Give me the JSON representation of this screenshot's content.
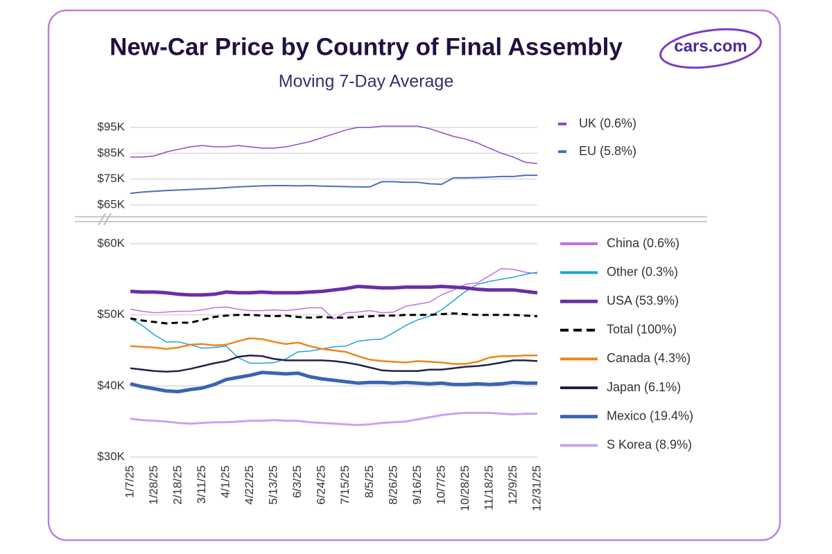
{
  "logo": "cars.com",
  "chart_data": [
    {
      "type": "line",
      "title": "New-Car Price by Country of Final Assembly",
      "subtitle": "Moving 7-Day Average",
      "categories": [
        "1/7/25",
        null,
        "1/28/25",
        null,
        "2/18/25",
        null,
        "3/11/25",
        null,
        "4/1/25",
        null,
        "4/22/25",
        null,
        "5/13/25",
        null,
        "6/3/25",
        null,
        "6/24/25",
        null,
        "7/15/25",
        null,
        "8/5/25",
        null,
        "8/26/25",
        null,
        "9/16/25",
        null,
        "10/7/25",
        null,
        "10/28/25",
        null,
        "11/18/25",
        null,
        "12/9/25",
        null,
        "12/31/25"
      ],
      "ylim": [
        60000,
        100000
      ],
      "yticks": [
        {
          "value": 65000,
          "label": "$65K"
        },
        {
          "value": 75000,
          "label": "$75K"
        },
        {
          "value": 85000,
          "label": "$85K"
        },
        {
          "value": 95000,
          "label": "$95K"
        }
      ],
      "grid": true,
      "series": [
        {
          "name": "UK (0.6%)",
          "color": "#8a4cc4",
          "width": 1.5,
          "values": [
            83500,
            83500,
            84000,
            85500,
            86500,
            87500,
            88000,
            87500,
            87500,
            88000,
            87500,
            87000,
            87000,
            87500,
            88500,
            89500,
            91000,
            92500,
            94000,
            95000,
            95000,
            95500,
            95500,
            95500,
            95500,
            94500,
            93000,
            91500,
            90500,
            89000,
            87000,
            85000,
            83500,
            81500,
            81000
          ]
        },
        {
          "name": "EU (5.8%)",
          "color": "#4a6fb8",
          "width": 2,
          "values": [
            69500,
            70000,
            70300,
            70600,
            70800,
            71000,
            71200,
            71400,
            71700,
            72000,
            72200,
            72400,
            72500,
            72500,
            72400,
            72500,
            72300,
            72200,
            72100,
            72000,
            72000,
            74000,
            74000,
            73800,
            73800,
            73200,
            73000,
            75500,
            75500,
            75600,
            75800,
            76000,
            76000,
            76500,
            76500
          ]
        }
      ]
    },
    {
      "type": "line",
      "ylim": [
        30000,
        60000
      ],
      "yticks": [
        {
          "value": 30000,
          "label": "$30K"
        },
        {
          "value": 40000,
          "label": "$40K"
        },
        {
          "value": 50000,
          "label": "$50K"
        },
        {
          "value": 60000,
          "label": "$60K"
        }
      ],
      "grid": true,
      "series": [
        {
          "name": "China (0.6%)",
          "color": "#c56ee0",
          "width": 1.5,
          "values": [
            50800,
            50500,
            50300,
            50400,
            50500,
            50500,
            50700,
            51000,
            51100,
            50800,
            50600,
            50600,
            50700,
            50600,
            50800,
            51000,
            51000,
            49400,
            50300,
            50400,
            50600,
            50300,
            50400,
            51200,
            51500,
            51800,
            52800,
            53500,
            54300,
            54500,
            55500,
            56500,
            56400,
            56000,
            55800
          ]
        },
        {
          "name": "Other (0.3%)",
          "color": "#1ea3d6",
          "width": 1.5,
          "values": [
            49500,
            48500,
            47200,
            46200,
            46200,
            45800,
            45300,
            45400,
            45600,
            44000,
            43200,
            43200,
            43300,
            43800,
            44800,
            44900,
            45200,
            45500,
            45600,
            46300,
            46500,
            46600,
            47500,
            48500,
            49300,
            49800,
            50700,
            52000,
            53300,
            54300,
            54700,
            55000,
            55300,
            55700,
            56000
          ]
        },
        {
          "name": "USA (53.9%)",
          "color": "#6a2ea8",
          "width": 5,
          "values": [
            53300,
            53200,
            53200,
            53100,
            52900,
            52800,
            52800,
            52900,
            53200,
            53100,
            53100,
            53200,
            53100,
            53100,
            53100,
            53200,
            53300,
            53500,
            53700,
            54000,
            53900,
            53800,
            53800,
            53900,
            53900,
            53900,
            54000,
            53900,
            53800,
            53600,
            53500,
            53500,
            53500,
            53300,
            53100
          ]
        },
        {
          "name": "Total (100%)",
          "color": "#000000",
          "width": 3,
          "dashed": true,
          "values": [
            49500,
            49200,
            49000,
            48800,
            48900,
            48900,
            49300,
            49700,
            49900,
            50000,
            50000,
            49900,
            49800,
            49900,
            49700,
            49600,
            49700,
            49600,
            49600,
            49700,
            49800,
            49900,
            49900,
            50000,
            50000,
            50000,
            50100,
            50200,
            50100,
            50000,
            50000,
            50000,
            50000,
            49900,
            49800
          ]
        },
        {
          "name": "Canada (4.3%)",
          "color": "#f0831a",
          "width": 2.5,
          "values": [
            45600,
            45500,
            45400,
            45200,
            45400,
            45800,
            45900,
            45700,
            45800,
            46300,
            46700,
            46600,
            46200,
            45900,
            46100,
            45600,
            45200,
            45000,
            44800,
            44200,
            43700,
            43500,
            43400,
            43300,
            43500,
            43400,
            43300,
            43100,
            43100,
            43400,
            44000,
            44200,
            44200,
            44300,
            44300
          ]
        },
        {
          "name": "Japan (6.1%)",
          "color": "#23204c",
          "width": 2.5,
          "values": [
            42500,
            42300,
            42100,
            42000,
            42100,
            42400,
            42800,
            43200,
            43500,
            44100,
            44300,
            44200,
            43800,
            43600,
            43600,
            43600,
            43600,
            43500,
            43300,
            43000,
            42600,
            42200,
            42100,
            42100,
            42100,
            42300,
            42300,
            42500,
            42700,
            42800,
            43000,
            43300,
            43600,
            43600,
            43500
          ]
        },
        {
          "name": "Mexico (19.4%)",
          "color": "#3a64b4",
          "width": 5,
          "values": [
            40300,
            39900,
            39600,
            39300,
            39200,
            39500,
            39700,
            40200,
            40900,
            41200,
            41500,
            41900,
            41800,
            41700,
            41800,
            41300,
            41000,
            40800,
            40600,
            40400,
            40500,
            40500,
            40400,
            40500,
            40400,
            40300,
            40400,
            40200,
            40200,
            40300,
            40200,
            40300,
            40500,
            40400,
            40400
          ]
        },
        {
          "name": "S Korea (8.9%)",
          "color": "#c9a2f2",
          "width": 3,
          "values": [
            35400,
            35200,
            35100,
            35000,
            34800,
            34700,
            34800,
            34900,
            34900,
            35000,
            35100,
            35100,
            35200,
            35100,
            35100,
            34900,
            34800,
            34700,
            34600,
            34500,
            34600,
            34800,
            34900,
            35000,
            35300,
            35600,
            35900,
            36100,
            36200,
            36200,
            36200,
            36100,
            36000,
            36100,
            36100
          ]
        }
      ]
    }
  ]
}
